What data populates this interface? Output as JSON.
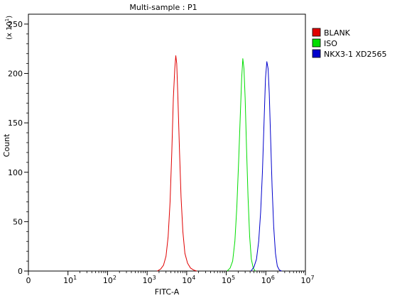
{
  "chart_data": {
    "type": "line",
    "title": "Multi-sample : P1",
    "xlabel": "FITC-A",
    "ylabel": "Count",
    "y_multiplier": "(x 10",
    "y_multiplier_exp": "1",
    "y_multiplier_close": ")",
    "x_scale": "log",
    "xlim": [
      0,
      10000000
    ],
    "ylim": [
      0,
      260
    ],
    "x_ticks": [
      {
        "value": 0,
        "base": "0",
        "exp": ""
      },
      {
        "value": 10,
        "base": "10",
        "exp": "1"
      },
      {
        "value": 100,
        "base": "10",
        "exp": "2"
      },
      {
        "value": 1000,
        "base": "10",
        "exp": "3"
      },
      {
        "value": 10000,
        "base": "10",
        "exp": "4"
      },
      {
        "value": 100000,
        "base": "10",
        "exp": "5"
      },
      {
        "value": 1000000,
        "base": "10",
        "exp": "6"
      },
      {
        "value": 10000000,
        "base": "10",
        "exp": "7"
      }
    ],
    "y_ticks": [
      0,
      50,
      100,
      150,
      200,
      250
    ],
    "legend_position": "right",
    "series": [
      {
        "name": "BLANK",
        "color": "#e00000",
        "points": [
          [
            1800,
            0
          ],
          [
            2200,
            2
          ],
          [
            2600,
            6
          ],
          [
            3000,
            15
          ],
          [
            3400,
            35
          ],
          [
            3800,
            70
          ],
          [
            4200,
            120
          ],
          [
            4600,
            175
          ],
          [
            5000,
            205
          ],
          [
            5300,
            218
          ],
          [
            5600,
            210
          ],
          [
            6000,
            175
          ],
          [
            6600,
            120
          ],
          [
            7200,
            75
          ],
          [
            8000,
            40
          ],
          [
            9000,
            18
          ],
          [
            10500,
            8
          ],
          [
            12500,
            3
          ],
          [
            15000,
            1
          ],
          [
            18000,
            0
          ]
        ]
      },
      {
        "name": "ISO",
        "color": "#00dd00",
        "points": [
          [
            105000,
            0
          ],
          [
            125000,
            3
          ],
          [
            145000,
            10
          ],
          [
            165000,
            30
          ],
          [
            185000,
            65
          ],
          [
            205000,
            110
          ],
          [
            225000,
            155
          ],
          [
            245000,
            195
          ],
          [
            262000,
            215
          ],
          [
            280000,
            205
          ],
          [
            300000,
            175
          ],
          [
            325000,
            125
          ],
          [
            355000,
            75
          ],
          [
            390000,
            35
          ],
          [
            430000,
            12
          ],
          [
            480000,
            3
          ],
          [
            540000,
            0
          ]
        ]
      },
      {
        "name": "NKX3-1 XD2565",
        "color": "#0000cc",
        "points": [
          [
            420000,
            0
          ],
          [
            500000,
            4
          ],
          [
            580000,
            12
          ],
          [
            660000,
            30
          ],
          [
            740000,
            60
          ],
          [
            820000,
            100
          ],
          [
            900000,
            150
          ],
          [
            980000,
            195
          ],
          [
            1060000,
            212
          ],
          [
            1140000,
            205
          ],
          [
            1220000,
            180
          ],
          [
            1320000,
            135
          ],
          [
            1440000,
            85
          ],
          [
            1580000,
            45
          ],
          [
            1750000,
            18
          ],
          [
            1950000,
            5
          ],
          [
            2200000,
            1
          ],
          [
            2500000,
            0
          ]
        ]
      }
    ]
  }
}
